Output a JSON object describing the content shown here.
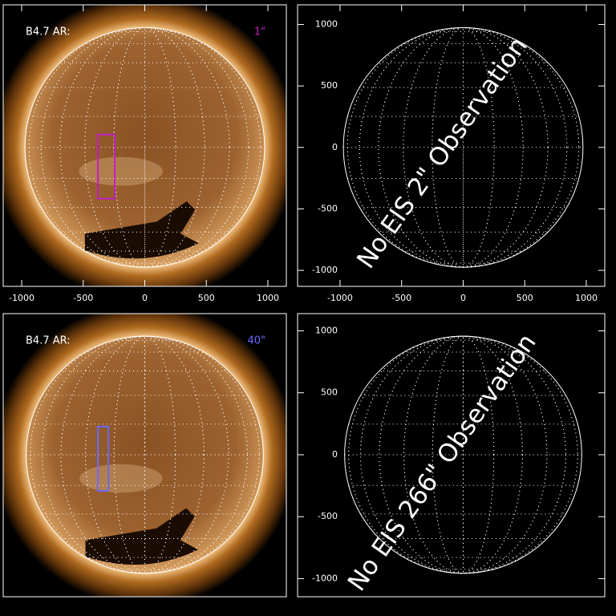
{
  "chart_data": [
    {
      "type": "image",
      "label": "B4.7 AR:",
      "tag": "1\"",
      "tag_color": "#c020c0",
      "xlim": [
        -1150,
        1150
      ],
      "ylim": [
        -1130,
        1160
      ],
      "xticks": [
        -1000,
        -500,
        0,
        500,
        1000
      ],
      "box": {
        "x": [
          -381,
          -244
        ],
        "y": [
          -417,
          104
        ],
        "color": "#c020c0"
      }
    },
    {
      "type": "empty",
      "annotation": "No EIS 2\" Observation",
      "xlim": [
        -1345,
        1150
      ],
      "ylim": [
        -1130,
        1160
      ],
      "xticks": [
        -1000,
        -500,
        0,
        500,
        1000
      ],
      "yticks": [
        -1000,
        -500,
        0,
        500,
        1000
      ]
    },
    {
      "type": "image",
      "label": "B4.7 AR:",
      "tag": "40\"",
      "tag_color": "#6a6aff",
      "xlim": [
        -1150,
        1150
      ],
      "ylim": [
        -1146,
        1139
      ],
      "box": {
        "x": [
          -381,
          -296
        ],
        "y": [
          -291,
          227
        ],
        "color": "#6a6aff"
      }
    },
    {
      "type": "empty",
      "annotation": "No EIS 266\" Observation",
      "xlim": [
        -1345,
        1150
      ],
      "ylim": [
        -1146,
        1139
      ],
      "yticks": [
        -1000,
        -500,
        0,
        500,
        1000
      ]
    }
  ]
}
